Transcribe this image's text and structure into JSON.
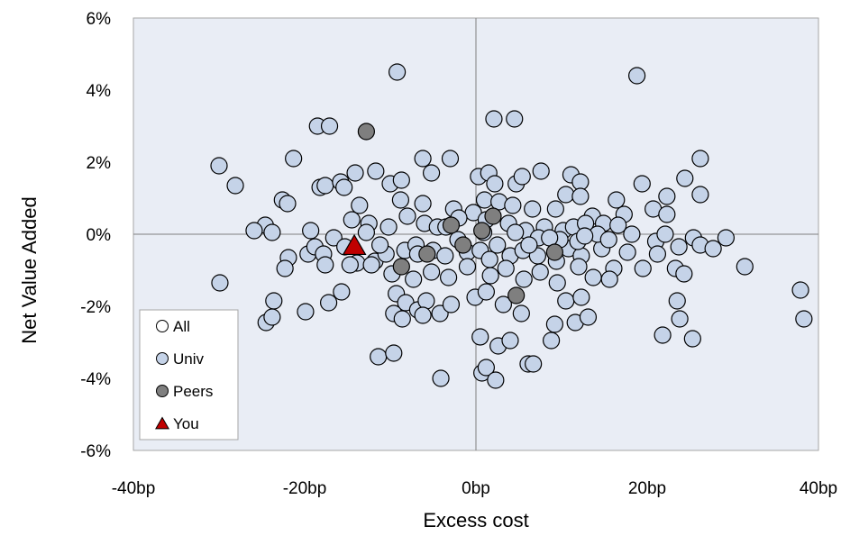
{
  "chart_data": {
    "type": "scatter",
    "xlabel": "Excess  cost",
    "ylabel": "Net Value  Added",
    "xlim": [
      -40,
      40
    ],
    "ylim": [
      -6,
      6
    ],
    "x_ticks": [
      "-40bp",
      "-20bp",
      "0bp",
      "20bp",
      "40bp"
    ],
    "y_ticks": [
      "6%",
      "4%",
      "2%",
      "0%",
      "-2%",
      "-4%",
      "-6%"
    ],
    "grid": false,
    "legend_placement": "bottom-left",
    "plot_background": "#E9EDF5",
    "series": [
      {
        "name": "All",
        "marker": "circle",
        "color": "#FFFFFF",
        "points": []
      },
      {
        "name": "Univ",
        "marker": "circle",
        "color": "#C5D3E8",
        "points": [
          [
            -9.2,
            4.5
          ],
          [
            18.8,
            4.4
          ],
          [
            2.1,
            3.2
          ],
          [
            4.5,
            3.2
          ],
          [
            -18.5,
            3.0
          ],
          [
            -17.1,
            3.0
          ],
          [
            -30,
            1.9
          ],
          [
            -28.1,
            1.35
          ],
          [
            -21.3,
            2.1
          ],
          [
            -6.2,
            2.1
          ],
          [
            -3,
            2.1
          ],
          [
            -18.2,
            1.3
          ],
          [
            -17.6,
            1.35
          ],
          [
            -15.8,
            1.45
          ],
          [
            -15.4,
            1.3
          ],
          [
            -14.1,
            1.7
          ],
          [
            -11.7,
            1.75
          ],
          [
            -10,
            1.4
          ],
          [
            -8.7,
            1.5
          ],
          [
            -5.2,
            1.7
          ],
          [
            0.3,
            1.6
          ],
          [
            1.5,
            1.7
          ],
          [
            2.2,
            1.4
          ],
          [
            4.7,
            1.4
          ],
          [
            5.4,
            1.6
          ],
          [
            7.6,
            1.75
          ],
          [
            11.1,
            1.65
          ],
          [
            12.2,
            1.45
          ],
          [
            19.4,
            1.4
          ],
          [
            24.4,
            1.55
          ],
          [
            26.2,
            2.1
          ],
          [
            16.4,
            0.95
          ],
          [
            22.3,
            1.05
          ],
          [
            26.2,
            1.1
          ],
          [
            -22.6,
            0.95
          ],
          [
            -22,
            0.85
          ],
          [
            -13.6,
            0.8
          ],
          [
            -8.8,
            0.95
          ],
          [
            -6.2,
            0.85
          ],
          [
            -2.6,
            0.7
          ],
          [
            -0.3,
            0.6
          ],
          [
            1,
            0.95
          ],
          [
            2.7,
            0.9
          ],
          [
            4.3,
            0.8
          ],
          [
            6.6,
            0.7
          ],
          [
            9.3,
            0.7
          ],
          [
            10.5,
            1.1
          ],
          [
            12.2,
            1.05
          ],
          [
            13.6,
            0.5
          ],
          [
            17.3,
            0.55
          ],
          [
            20.7,
            0.7
          ],
          [
            22.3,
            0.55
          ],
          [
            -24.6,
            0.25
          ],
          [
            -23.8,
            0.05
          ],
          [
            -19.3,
            0.1
          ],
          [
            -16.6,
            -0.1
          ],
          [
            -14.5,
            0.4
          ],
          [
            -12.5,
            0.3
          ],
          [
            -10.2,
            0.2
          ],
          [
            -8,
            0.5
          ],
          [
            -6,
            0.3
          ],
          [
            -4.5,
            0.2
          ],
          [
            -2,
            0.45
          ],
          [
            1.2,
            0.4
          ],
          [
            3.8,
            0.3
          ],
          [
            5.8,
            0.1
          ],
          [
            8,
            0.2
          ],
          [
            10.2,
            0.1
          ],
          [
            11.4,
            0.2
          ],
          [
            12.8,
            0.3
          ],
          [
            14.9,
            0.3
          ],
          [
            16.6,
            0.25
          ],
          [
            18.2,
            0
          ],
          [
            21,
            -0.2
          ],
          [
            22.1,
            0
          ],
          [
            23.7,
            -0.35
          ],
          [
            25.4,
            -0.1
          ],
          [
            26.2,
            -0.3
          ],
          [
            27.7,
            -0.4
          ],
          [
            29.2,
            -0.1
          ],
          [
            -19.6,
            -0.55
          ],
          [
            -18.8,
            -0.35
          ],
          [
            -17.8,
            -0.55
          ],
          [
            -15.3,
            -0.35
          ],
          [
            -13.9,
            -0.8
          ],
          [
            -11.8,
            -0.75
          ],
          [
            -10.5,
            -0.55
          ],
          [
            -8.3,
            -0.45
          ],
          [
            -7,
            -0.3
          ],
          [
            -5,
            -0.45
          ],
          [
            -3.6,
            -0.6
          ],
          [
            -1,
            -0.5
          ],
          [
            0.5,
            -0.45
          ],
          [
            2.5,
            -0.3
          ],
          [
            4,
            -0.6
          ],
          [
            5.5,
            -0.45
          ],
          [
            7.2,
            -0.6
          ],
          [
            9.4,
            -0.75
          ],
          [
            10.8,
            -0.4
          ],
          [
            12.3,
            -0.6
          ],
          [
            14.7,
            -0.4
          ],
          [
            16.1,
            -0.95
          ],
          [
            17.7,
            -0.5
          ],
          [
            19.5,
            -0.95
          ],
          [
            21.2,
            -0.55
          ],
          [
            23.3,
            -0.95
          ],
          [
            24.3,
            -1.1
          ],
          [
            31.4,
            -0.9
          ],
          [
            -21.9,
            -0.65
          ],
          [
            -22.3,
            -0.95
          ],
          [
            -17.6,
            -0.85
          ],
          [
            -14.7,
            -0.85
          ],
          [
            -12.2,
            -0.85
          ],
          [
            -9.8,
            -1.1
          ],
          [
            -7.3,
            -1.25
          ],
          [
            -5.2,
            -1.05
          ],
          [
            -3.2,
            -1.2
          ],
          [
            -1,
            -0.9
          ],
          [
            1.7,
            -1.15
          ],
          [
            3.5,
            -0.95
          ],
          [
            5.6,
            -1.25
          ],
          [
            7.5,
            -1.05
          ],
          [
            9.5,
            -1.35
          ],
          [
            12,
            -0.9
          ],
          [
            13.7,
            -1.2
          ],
          [
            15.6,
            -1.25
          ],
          [
            -23.6,
            -1.85
          ],
          [
            -24.5,
            -2.45
          ],
          [
            -23.8,
            -2.3
          ],
          [
            -19.9,
            -2.15
          ],
          [
            -17.2,
            -1.9
          ],
          [
            -15.7,
            -1.6
          ],
          [
            -9.3,
            -1.65
          ],
          [
            -8.2,
            -1.9
          ],
          [
            -6.8,
            -2.1
          ],
          [
            -5.8,
            -1.85
          ],
          [
            -4.2,
            -2.2
          ],
          [
            -2.9,
            -1.95
          ],
          [
            -0.1,
            -1.75
          ],
          [
            1.2,
            -1.6
          ],
          [
            3.2,
            -1.95
          ],
          [
            5.3,
            -2.2
          ],
          [
            10.5,
            -1.85
          ],
          [
            12.3,
            -1.75
          ],
          [
            -9.6,
            -2.2
          ],
          [
            -8.6,
            -2.35
          ],
          [
            -6.2,
            -2.25
          ],
          [
            9.2,
            -2.5
          ],
          [
            11.6,
            -2.45
          ],
          [
            13.1,
            -2.3
          ],
          [
            -11.4,
            -3.4
          ],
          [
            -9.6,
            -3.3
          ],
          [
            -4.1,
            -4.0
          ],
          [
            0.5,
            -2.85
          ],
          [
            2.6,
            -3.1
          ],
          [
            4,
            -2.95
          ],
          [
            6.1,
            -3.6
          ],
          [
            6.7,
            -3.6
          ],
          [
            8.8,
            -2.95
          ],
          [
            0.7,
            -3.85
          ],
          [
            1.2,
            -3.7
          ],
          [
            2.3,
            -4.05
          ],
          [
            21.8,
            -2.8
          ],
          [
            23.8,
            -2.35
          ],
          [
            23.5,
            -1.85
          ],
          [
            25.3,
            -2.9
          ],
          [
            37.9,
            -1.55
          ],
          [
            38.3,
            -2.35
          ],
          [
            -29.9,
            -1.35
          ],
          [
            -25.9,
            0.1
          ],
          [
            -12.8,
            0.05
          ],
          [
            -3.5,
            0.2
          ],
          [
            0.9,
            0.05
          ],
          [
            4.6,
            0.05
          ],
          [
            7.3,
            -0.1
          ],
          [
            9.8,
            -0.15
          ],
          [
            11.9,
            -0.2
          ],
          [
            14.2,
            0
          ],
          [
            -11.2,
            -0.3
          ],
          [
            -6.8,
            -0.55
          ],
          [
            -2.1,
            -0.15
          ],
          [
            1.6,
            -0.7
          ],
          [
            6.2,
            -0.3
          ],
          [
            8.6,
            -0.1
          ],
          [
            12.7,
            -0.05
          ],
          [
            15.5,
            -0.15
          ]
        ]
      },
      {
        "name": "Peers",
        "marker": "circle",
        "color": "#7F7F7F",
        "points": [
          [
            -12.8,
            2.85
          ],
          [
            -2.9,
            0.25
          ],
          [
            2,
            0.5
          ],
          [
            0.7,
            0.1
          ],
          [
            -1.5,
            -0.3
          ],
          [
            -5.7,
            -0.55
          ],
          [
            -8.7,
            -0.9
          ],
          [
            9.2,
            -0.5
          ],
          [
            4.7,
            -1.7
          ]
        ]
      },
      {
        "name": "You",
        "marker": "triangle",
        "color": "#C00000",
        "points": [
          [
            -14.2,
            -0.35
          ]
        ]
      }
    ]
  }
}
